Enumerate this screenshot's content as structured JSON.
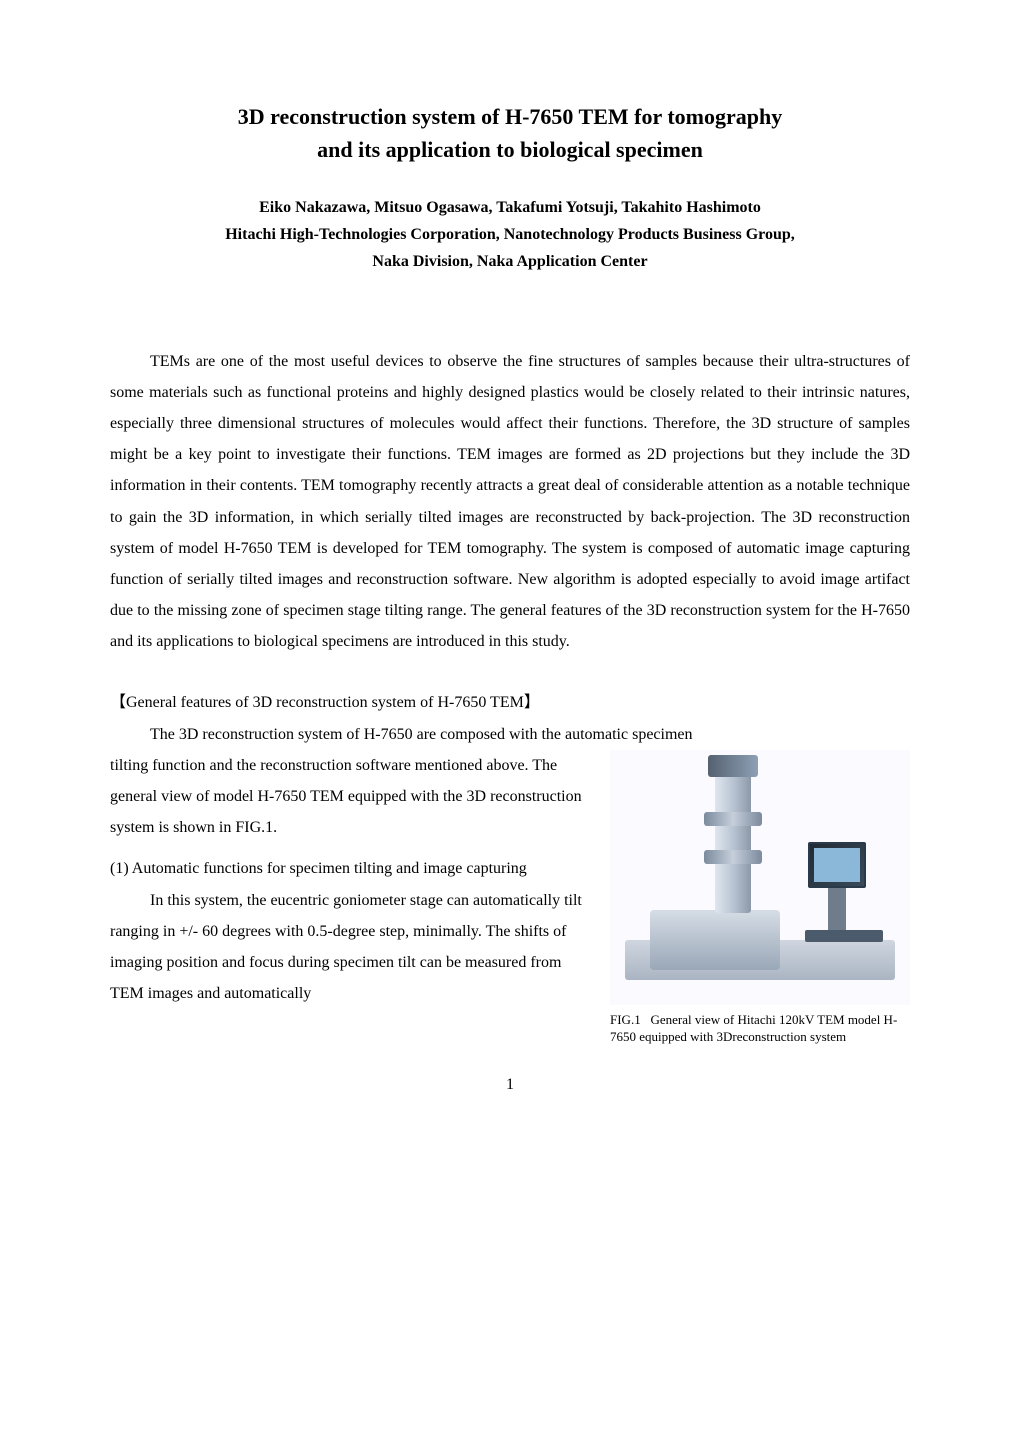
{
  "title": {
    "line1": "3D reconstruction system of H-7650 TEM for tomography",
    "line2": "and its application to biological specimen"
  },
  "authors": {
    "line1": "Eiko Nakazawa, Mitsuo Ogasawa, Takafumi Yotsuji, Takahito Hashimoto",
    "line2": "Hitachi High-Technologies Corporation, Nanotechnology Products Business Group,",
    "line3": "Naka Division, Naka Application Center"
  },
  "paragraphs": {
    "p1": "TEMs are one of the most useful devices to observe the fine structures of samples because their ultra-structures of some materials such as functional proteins and highly designed plastics would be closely related to their intrinsic natures, especially three dimensional structures of molecules would affect their functions. Therefore, the 3D structure of samples might be a key point to investigate their functions. TEM images are formed as 2D projections but they include the 3D information in their contents. TEM tomography recently attracts a great deal of considerable attention as a notable technique to gain the 3D information, in which serially tilted images are reconstructed by back-projection. The 3D reconstruction system of model H-7650 TEM is developed for TEM tomography. The system is composed of automatic image capturing function of serially tilted images and reconstruction software. New algorithm is adopted especially to avoid image artifact due to the missing zone of specimen stage tilting range. The general features of the 3D reconstruction system for the H-7650 and its applications to biological specimens are introduced in this study."
  },
  "section": {
    "heading": "【General features of 3D reconstruction system of H-7650 TEM】",
    "intro": "The 3D reconstruction system of H-7650 are composed with the automatic specimen",
    "left_block1": "tilting function and the reconstruction software mentioned above. The general view of model H-7650 TEM equipped with the 3D reconstruction system is shown in FIG.1.",
    "subsection_num": "(1)",
    "subsection_title": "Automatic functions for specimen tilting and image capturing",
    "left_block2": "In this system, the eucentric goniometer stage can automatically tilt ranging in +/- 60 degrees with 0.5-degree step, minimally. The shifts of imaging position and focus during specimen tilt can be measured from TEM images and automatically"
  },
  "figure": {
    "caption_label": "FIG.1",
    "caption_text": "General view of Hitachi 120kV TEM model H-7650 equipped with 3Dreconstruction system"
  },
  "page_number": "1",
  "styles": {
    "title_fontsize": 22,
    "body_fontsize": 16,
    "caption_fontsize": 13,
    "line_height": 1.95,
    "text_color": "#000000",
    "background_color": "#ffffff"
  }
}
